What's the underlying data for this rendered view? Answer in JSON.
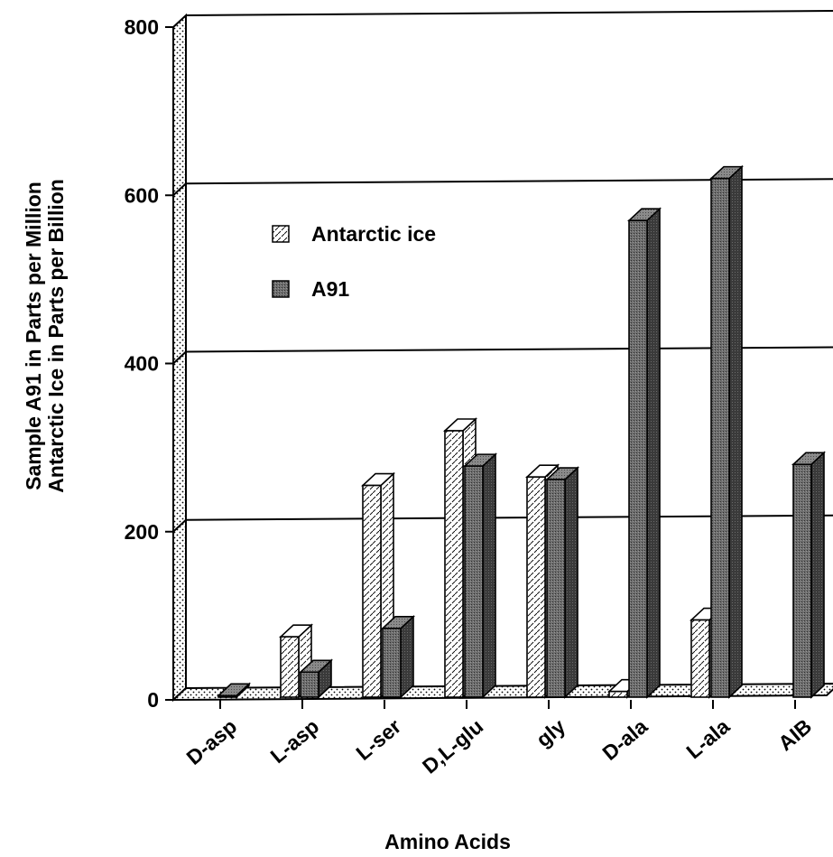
{
  "chart_data": {
    "type": "bar",
    "title": "",
    "xlabel": "Amino Acids",
    "ylabel": [
      "Sample A91 in Parts per Million",
      "Antarctic Ice in Parts per Billion"
    ],
    "ylim": [
      0,
      800
    ],
    "yticks": [
      "0",
      "200",
      "400",
      "600",
      "800"
    ],
    "grid": true,
    "legend_position": "upper-left",
    "categories": [
      "D-asp",
      "L-asp",
      "L-ser",
      "D,L-glu",
      "gly",
      "D-ala",
      "L-ala",
      "AIB"
    ],
    "series": [
      {
        "name": "Antarctic ice",
        "pattern": "dotted-white",
        "values": [
          0,
          75,
          255,
          320,
          265,
          10,
          95,
          0
        ]
      },
      {
        "name": "A91",
        "pattern": "dark-gray",
        "values": [
          5,
          33,
          85,
          278,
          262,
          570,
          620,
          280
        ]
      }
    ]
  }
}
